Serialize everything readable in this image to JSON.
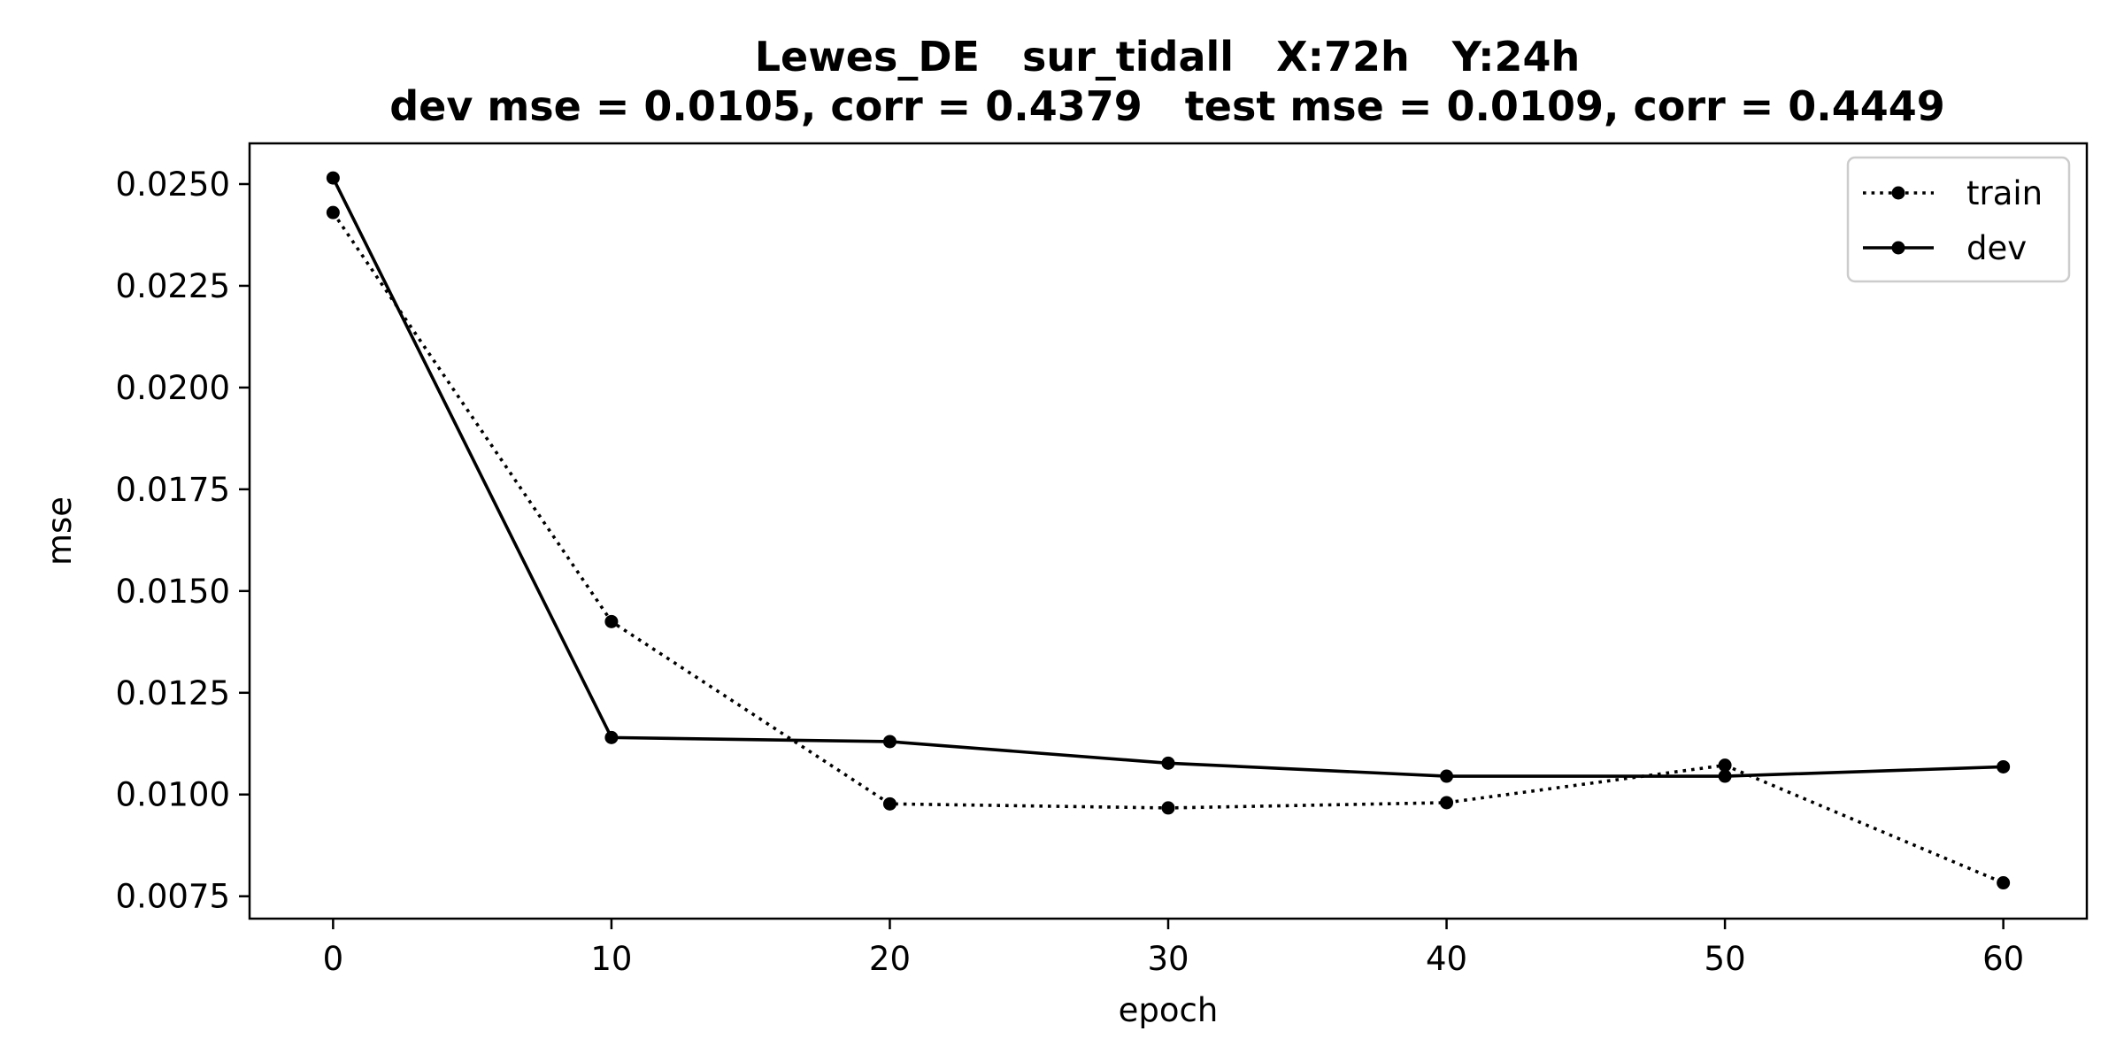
{
  "chart_data": {
    "type": "line",
    "title": "Lewes_DE   sur_tidall   X:72h   Y:24h",
    "subtitle": "dev mse = 0.0105, corr = 0.4379   test mse = 0.0109, corr = 0.4449",
    "xlabel": "epoch",
    "ylabel": "mse",
    "xlim": [
      -3,
      63
    ],
    "ylim": [
      0.00695,
      0.026
    ],
    "x_ticks": [
      0,
      10,
      20,
      30,
      40,
      50,
      60
    ],
    "x_tick_labels": [
      "0",
      "10",
      "20",
      "30",
      "40",
      "50",
      "60"
    ],
    "y_ticks": [
      0.0075,
      0.01,
      0.0125,
      0.015,
      0.0175,
      0.02,
      0.0225,
      0.025
    ],
    "y_tick_labels": [
      "0.0075",
      "0.0100",
      "0.0125",
      "0.0150",
      "0.0175",
      "0.0200",
      "0.0225",
      "0.0250"
    ],
    "x": [
      0,
      10,
      20,
      30,
      40,
      50,
      60
    ],
    "series": [
      {
        "name": "train",
        "line_style": "dotted",
        "marker": "circle",
        "color": "#000000",
        "values": [
          0.0243,
          0.01425,
          0.00977,
          0.00967,
          0.0098,
          0.01072,
          0.00783
        ]
      },
      {
        "name": "dev",
        "line_style": "solid",
        "marker": "circle",
        "color": "#000000",
        "values": [
          0.02515,
          0.0114,
          0.0113,
          0.01077,
          0.01045,
          0.01045,
          0.01068
        ]
      }
    ],
    "legend_position": "top-right",
    "grid": false
  }
}
